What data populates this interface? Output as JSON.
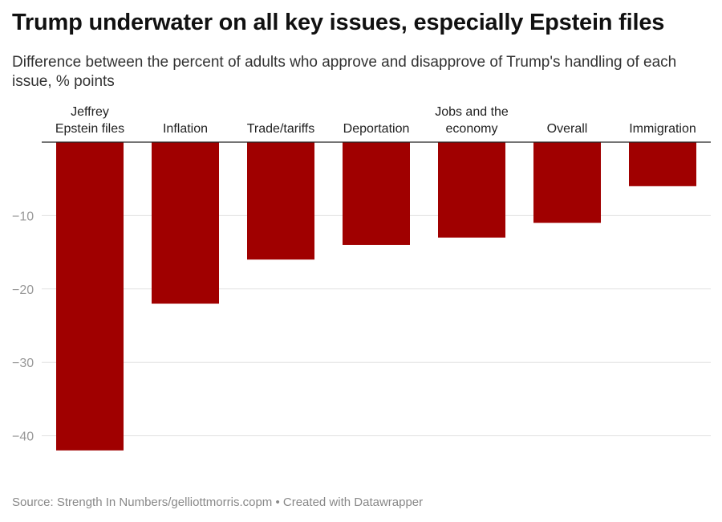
{
  "title": "Trump underwater on all key issues, especially Epstein files",
  "subtitle": "Difference between the percent of adults who approve and disapprove of Trump's handling of each issue, % points",
  "footer": {
    "source": "Source: Strength In Numbers/gelliottmorris.copm",
    "separator": " • ",
    "credit": "Created with Datawrapper"
  },
  "colors": {
    "bar": "#a00000",
    "grid": "#e2e2e2",
    "baseline": "#222222",
    "tick_label": "#999999",
    "category_label": "#222222"
  },
  "chart_data": {
    "type": "bar",
    "categories": [
      [
        "Jeffrey",
        "Epstein files"
      ],
      [
        "Inflation"
      ],
      [
        "Trade/tariffs"
      ],
      [
        "Deportation"
      ],
      [
        "Jobs and the",
        "economy"
      ],
      [
        "Overall"
      ],
      [
        "Immigration"
      ]
    ],
    "values": [
      -42,
      -22,
      -16,
      -14,
      -13,
      -11,
      -6
    ],
    "ylim": [
      -42,
      0
    ],
    "yticks": [
      -10,
      -20,
      -30,
      -40
    ],
    "ytick_labels": [
      "−10",
      "−20",
      "−30",
      "−40"
    ],
    "grid": true,
    "category_axis_position": "top"
  }
}
